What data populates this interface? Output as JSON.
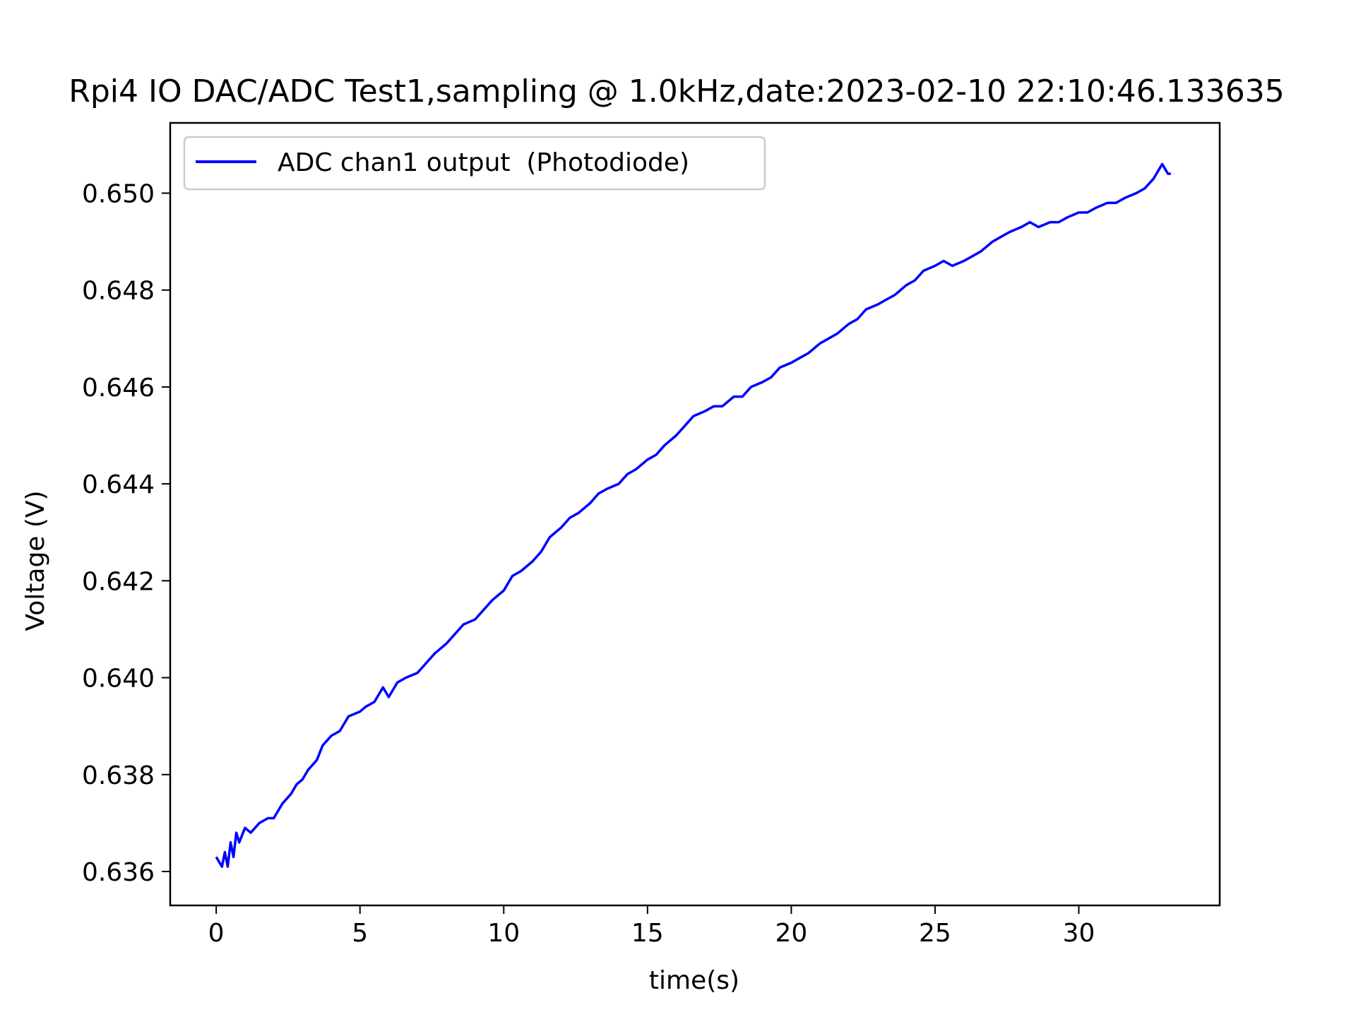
{
  "chart_data": {
    "type": "line",
    "title": "Rpi4 IO DAC/ADC Test1,sampling @ 1.0kHz,date:2023-02-10 22:10:46.133635",
    "xlabel": "time(s)",
    "ylabel": "Voltage (V)",
    "xlim": [
      -1.6,
      34.9
    ],
    "ylim": [
      0.6353,
      0.65145
    ],
    "xticks": [
      0,
      5,
      10,
      15,
      20,
      25,
      30
    ],
    "xtick_labels": [
      "0",
      "5",
      "10",
      "15",
      "20",
      "25",
      "30"
    ],
    "yticks": [
      0.636,
      0.638,
      0.64,
      0.642,
      0.644,
      0.646,
      0.648,
      0.65
    ],
    "ytick_labels": [
      "0.636",
      "0.638",
      "0.640",
      "0.642",
      "0.644",
      "0.646",
      "0.648",
      "0.650"
    ],
    "grid": false,
    "legend_position": "upper-left",
    "series": [
      {
        "name": "ADC chan1 output  (Photodiode)",
        "color": "#0000ff",
        "x": [
          0,
          0.1,
          0.2,
          0.3,
          0.4,
          0.5,
          0.6,
          0.7,
          0.8,
          1.0,
          1.2,
          1.5,
          1.8,
          2.0,
          2.3,
          2.6,
          2.8,
          3.0,
          3.2,
          3.5,
          3.7,
          4.0,
          4.3,
          4.6,
          5.0,
          5.2,
          5.5,
          5.8,
          6.0,
          6.3,
          6.6,
          7.0,
          7.3,
          7.6,
          8.0,
          8.3,
          8.6,
          9.0,
          9.3,
          9.6,
          10.0,
          10.3,
          10.6,
          11.0,
          11.3,
          11.6,
          12.0,
          12.3,
          12.6,
          13.0,
          13.3,
          13.6,
          14.0,
          14.3,
          14.6,
          15.0,
          15.3,
          15.6,
          16.0,
          16.3,
          16.6,
          17.0,
          17.3,
          17.6,
          18.0,
          18.3,
          18.6,
          19.0,
          19.3,
          19.6,
          20.0,
          20.3,
          20.6,
          21.0,
          21.3,
          21.6,
          22.0,
          22.3,
          22.6,
          23.0,
          23.3,
          23.6,
          24.0,
          24.3,
          24.6,
          25.0,
          25.3,
          25.6,
          26.0,
          26.3,
          26.6,
          27.0,
          27.3,
          27.6,
          28.0,
          28.3,
          28.6,
          29.0,
          29.3,
          29.6,
          30.0,
          30.3,
          30.6,
          31.0,
          31.3,
          31.6,
          32.0,
          32.3,
          32.6,
          32.9,
          33.1,
          33.2
        ],
        "y": [
          0.6363,
          0.6362,
          0.6361,
          0.6364,
          0.6361,
          0.6366,
          0.6363,
          0.6368,
          0.6366,
          0.6369,
          0.6368,
          0.637,
          0.6371,
          0.6371,
          0.6374,
          0.6376,
          0.6378,
          0.6379,
          0.6381,
          0.6383,
          0.6386,
          0.6388,
          0.6389,
          0.6392,
          0.6393,
          0.6394,
          0.6395,
          0.6398,
          0.6396,
          0.6399,
          0.64,
          0.6401,
          0.6403,
          0.6405,
          0.6407,
          0.6409,
          0.6411,
          0.6412,
          0.6414,
          0.6416,
          0.6418,
          0.6421,
          0.6422,
          0.6424,
          0.6426,
          0.6429,
          0.6431,
          0.6433,
          0.6434,
          0.6436,
          0.6438,
          0.6439,
          0.644,
          0.6442,
          0.6443,
          0.6445,
          0.6446,
          0.6448,
          0.645,
          0.6452,
          0.6454,
          0.6455,
          0.6456,
          0.6456,
          0.6458,
          0.6458,
          0.646,
          0.6461,
          0.6462,
          0.6464,
          0.6465,
          0.6466,
          0.6467,
          0.6469,
          0.647,
          0.6471,
          0.6473,
          0.6474,
          0.6476,
          0.6477,
          0.6478,
          0.6479,
          0.6481,
          0.6482,
          0.6484,
          0.6485,
          0.6486,
          0.6485,
          0.6486,
          0.6487,
          0.6488,
          0.649,
          0.6491,
          0.6492,
          0.6493,
          0.6494,
          0.6493,
          0.6494,
          0.6494,
          0.6495,
          0.6496,
          0.6496,
          0.6497,
          0.6498,
          0.6498,
          0.6499,
          0.65,
          0.6501,
          0.6503,
          0.6506,
          0.6504,
          0.6504
        ]
      }
    ]
  }
}
